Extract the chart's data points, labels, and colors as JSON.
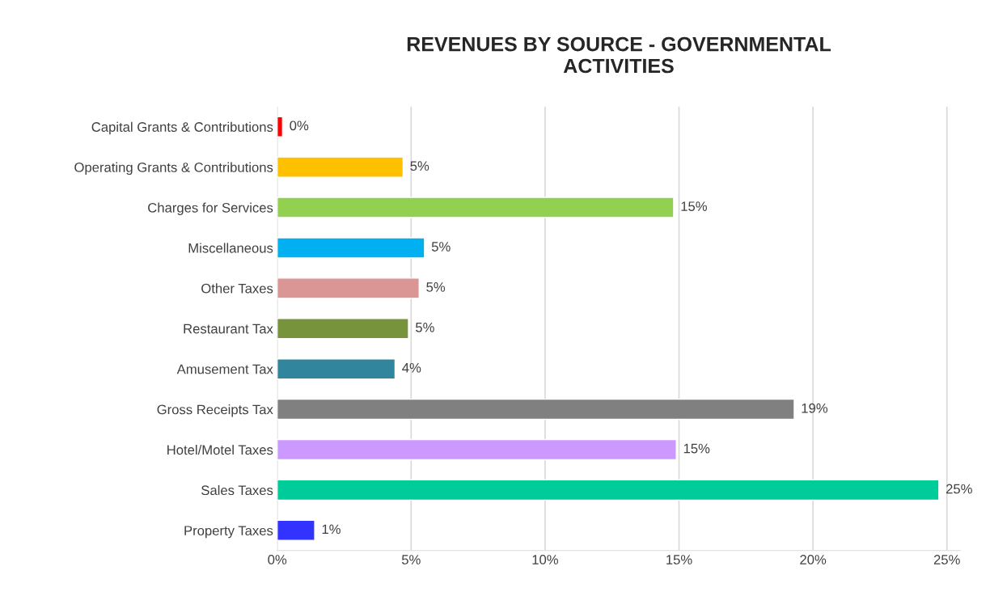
{
  "chart_data": {
    "type": "bar",
    "orientation": "horizontal",
    "title": "REVENUES BY SOURCE - GOVERNMENTAL\nACTIVITIES",
    "categories": [
      "Capital Grants & Contributions",
      "Operating Grants & Contributions",
      "Charges for Services",
      "Miscellaneous",
      "Other Taxes",
      "Restaurant Tax",
      "Amusement Tax",
      "Gross Receipts Tax",
      "Hotel/Motel Taxes",
      "Sales Taxes",
      "Property Taxes"
    ],
    "values": [
      0.2,
      4.7,
      14.8,
      5.5,
      5.3,
      4.9,
      4.4,
      19.3,
      14.9,
      24.7,
      1.4
    ],
    "value_labels": [
      "0%",
      "5%",
      "15%",
      "5%",
      "5%",
      "5%",
      "4%",
      "19%",
      "15%",
      "25%",
      "1%"
    ],
    "colors": [
      "#ff0000",
      "#ffc000",
      "#92d050",
      "#00b0f0",
      "#da9694",
      "#77933c",
      "#31859c",
      "#808080",
      "#cc99ff",
      "#00cc99",
      "#3333ff"
    ],
    "xlim": [
      0,
      25.5
    ],
    "xticks": [
      {
        "value": 0,
        "label": "0%"
      },
      {
        "value": 5,
        "label": "5%"
      },
      {
        "value": 10,
        "label": "10%"
      },
      {
        "value": 15,
        "label": "15%"
      },
      {
        "value": 20,
        "label": "20%"
      },
      {
        "value": 25,
        "label": "25%"
      }
    ],
    "grid": "x"
  }
}
